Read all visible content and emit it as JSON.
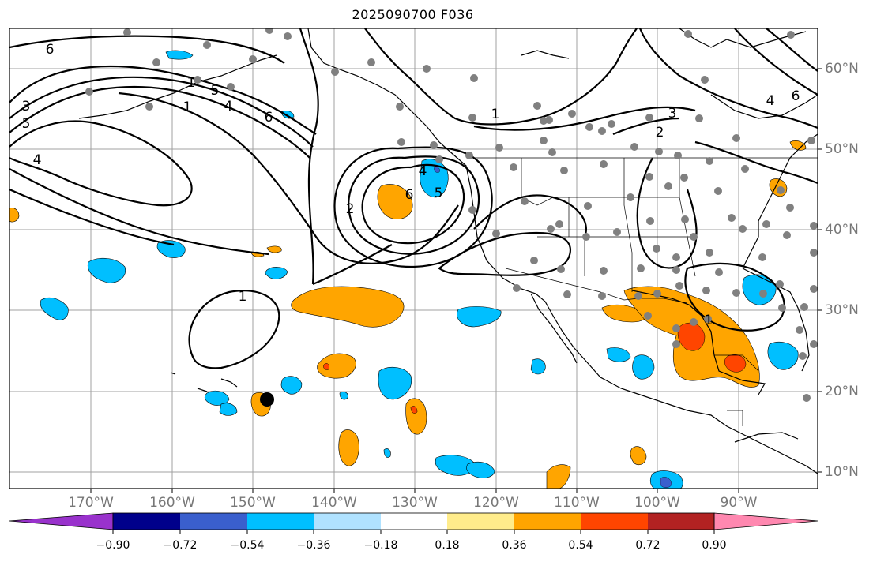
{
  "title": "2025090700 F036",
  "lon_labels": [
    "170°W",
    "160°W",
    "150°W",
    "140°W",
    "130°W",
    "120°W",
    "110°W",
    "100°W",
    "90°W"
  ],
  "lat_labels": [
    "60°N",
    "50°N",
    "40°N",
    "30°N",
    "20°N",
    "10°N"
  ],
  "contour_labels": [
    "6",
    "3",
    "5",
    "4",
    "1",
    "1",
    "5",
    "4",
    "6",
    "2",
    "4",
    "6",
    "5",
    "1",
    "3",
    "2",
    "4",
    "6",
    "1",
    "1"
  ],
  "colorbar": {
    "ticks": [
      "−0.90",
      "−0.72",
      "−0.54",
      "−0.36",
      "−0.18",
      "0.18",
      "0.36",
      "0.54",
      "0.72",
      "0.90"
    ],
    "colors": [
      "#9932cc",
      "#00008b",
      "#3a5fcd",
      "#00bfff",
      "#b0e2ff",
      "#ffffff",
      "#ffec8b",
      "#ffa500",
      "#ff4500",
      "#b22222",
      "#ff88b0"
    ]
  },
  "colors": {
    "negative_fill": "#00bfff",
    "positive_fill": "#ffa500",
    "strong_positive": "#ff4500",
    "station": "#808080",
    "contour": "#000000",
    "grid": "#a0a0a0"
  }
}
